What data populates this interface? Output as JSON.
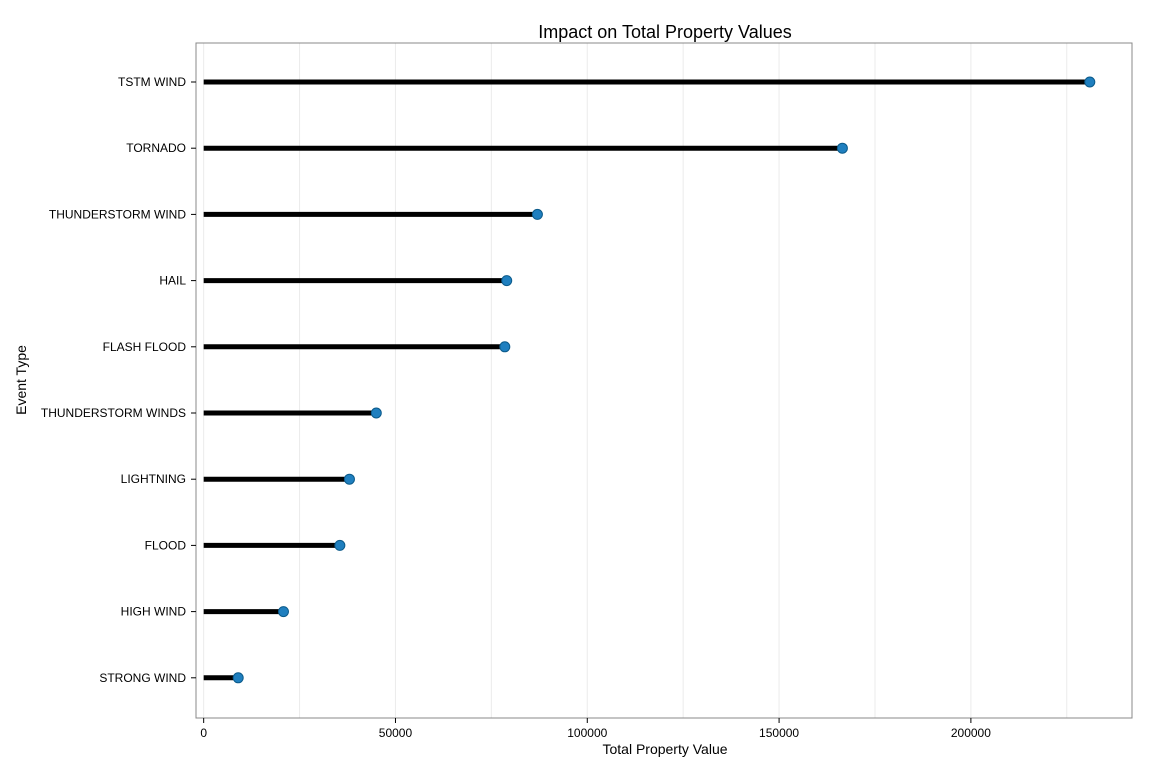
{
  "chart_data": {
    "type": "lollipop",
    "title": "Impact on Total Property Values",
    "xlabel": "Total Property Value",
    "ylabel": "Event Type",
    "xlim": [
      -2000,
      242000
    ],
    "xticks": [
      0,
      50000,
      100000,
      150000,
      200000
    ],
    "xtick_labels": [
      "0",
      "50000",
      "100000",
      "150000",
      "200000"
    ],
    "grid": true,
    "categories": [
      "TSTM WIND",
      "TORNADO",
      "THUNDERSTORM WIND",
      "HAIL",
      "FLASH FLOOD",
      "THUNDERSTORM WINDS",
      "LIGHTNING",
      "FLOOD",
      "HIGH WIND",
      "STRONG WIND"
    ],
    "values": [
      231000,
      166500,
      87000,
      79000,
      78500,
      45000,
      38000,
      35500,
      20800,
      9000
    ],
    "colors": {
      "stem": "#000000",
      "dot": "#1f7fbf",
      "dot_edge": "#0b5a8a",
      "frame": "#888888",
      "grid": "#ebebeb"
    }
  }
}
